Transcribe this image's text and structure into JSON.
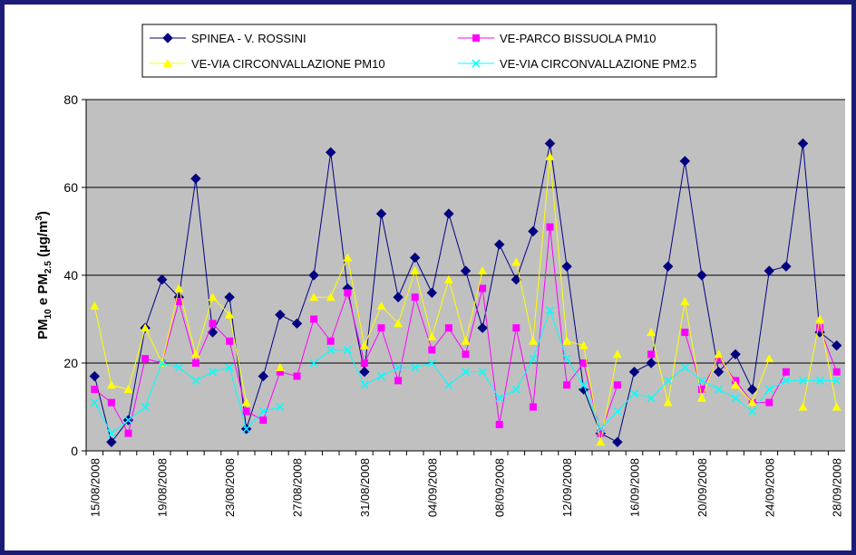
{
  "chart_data": {
    "type": "line",
    "y_label": [
      "PM",
      "10",
      " e PM",
      "2.5",
      " (µg/m",
      "3",
      ")"
    ],
    "categories": [
      "15/08/2008",
      null,
      null,
      null,
      "19/08/2008",
      null,
      null,
      null,
      "23/08/2008",
      null,
      null,
      null,
      "27/08/2008",
      null,
      null,
      null,
      "31/08/2008",
      null,
      null,
      null,
      "04/09/2008",
      null,
      null,
      null,
      "08/09/2008",
      null,
      null,
      null,
      "12/09/2008",
      null,
      null,
      null,
      "16/09/2008",
      null,
      null,
      null,
      "20/09/2008",
      null,
      null,
      null,
      "24/09/2008",
      null,
      null,
      null,
      "28/09/2008"
    ],
    "ylim": [
      0,
      80
    ],
    "yticks": [
      0,
      20,
      40,
      60,
      80
    ],
    "grid": true,
    "series": [
      {
        "name": "SPINEA - V. ROSSINI",
        "color": "#000080",
        "marker": "diamond",
        "values": [
          17,
          2,
          7,
          28,
          39,
          35,
          62,
          27,
          35,
          5,
          17,
          31,
          29,
          40,
          68,
          37,
          18,
          54,
          35,
          44,
          36,
          54,
          41,
          28,
          47,
          39,
          50,
          70,
          42,
          14,
          4,
          2,
          18,
          20,
          42,
          66,
          40,
          18,
          22,
          14,
          41,
          42,
          70,
          27,
          24
        ]
      },
      {
        "name": "VE-PARCO BISSUOLA PM10",
        "color": "#ff00ff",
        "marker": "square",
        "values": [
          14,
          11,
          4,
          21,
          20,
          34,
          20,
          29,
          25,
          9,
          7,
          18,
          17,
          30,
          25,
          36,
          20,
          28,
          16,
          35,
          23,
          28,
          22,
          37,
          6,
          28,
          10,
          51,
          15,
          20,
          4,
          15,
          null,
          22,
          null,
          27,
          14,
          21,
          16,
          11,
          11,
          18,
          null,
          28,
          18
        ]
      },
      {
        "name": "VE-VIA CIRCONVALLAZIONE PM10",
        "color": "#ffff00",
        "marker": "triangle",
        "values": [
          33,
          15,
          14,
          28,
          20,
          37,
          22,
          35,
          31,
          11,
          null,
          19,
          null,
          35,
          35,
          44,
          24,
          33,
          29,
          41,
          26,
          39,
          25,
          41,
          null,
          43,
          25,
          67,
          25,
          24,
          2,
          22,
          null,
          27,
          11,
          34,
          12,
          22,
          15,
          11,
          21,
          null,
          10,
          30,
          10
        ]
      },
      {
        "name": "VE-VIA CIRCONVALLAZIONE PM2.5",
        "color": "#00ffff",
        "marker": "x",
        "values": [
          11,
          4,
          7,
          10,
          20,
          19,
          16,
          18,
          19,
          5,
          9,
          10,
          null,
          20,
          23,
          23,
          15,
          17,
          19,
          19,
          20,
          15,
          18,
          18,
          12,
          14,
          21,
          32,
          21,
          15,
          5,
          9,
          13,
          12,
          16,
          19,
          16,
          14,
          12,
          9,
          14,
          16,
          16,
          16,
          16
        ]
      }
    ]
  }
}
